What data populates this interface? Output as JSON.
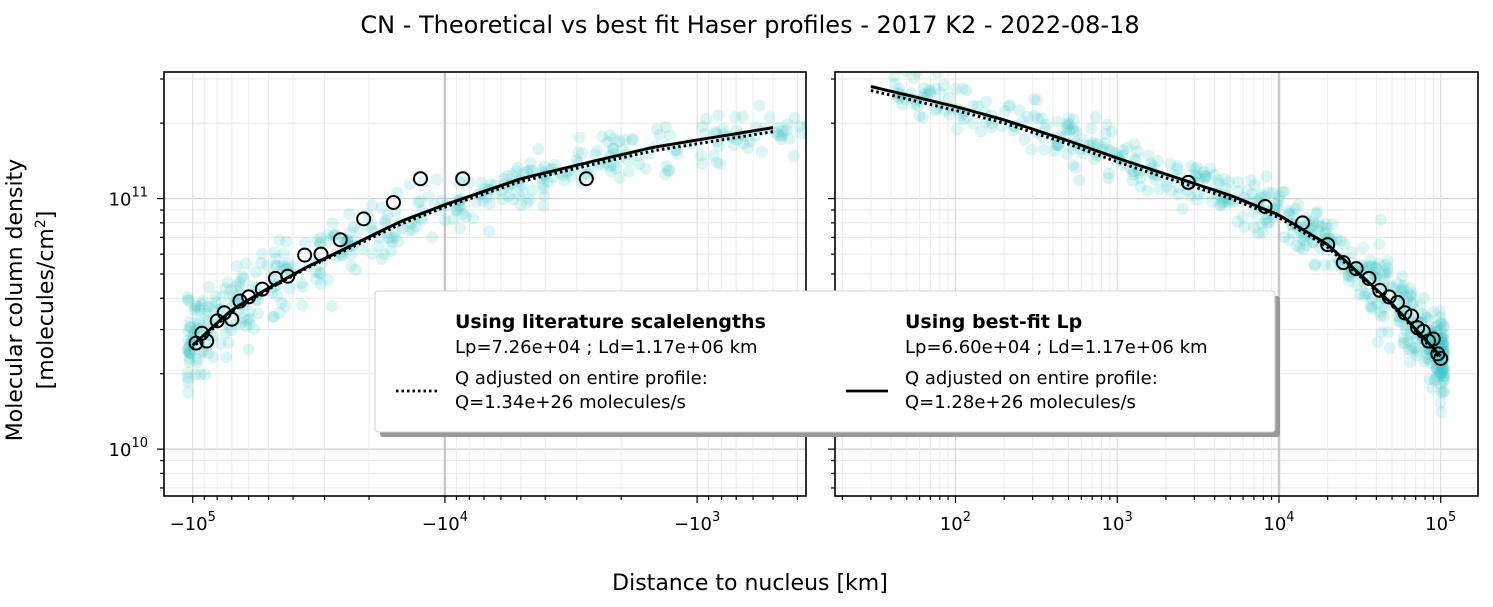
{
  "chart_data": {
    "type": "scatter",
    "title": "CN - Theoretical vs best fit Haser profiles - 2017 K2 - 2022-08-18",
    "xlabel": "Distance to nucleus [km]",
    "ylabel_line1": "Molecular column density",
    "ylabel_line2_prefix": "[molecules/cm",
    "ylabel_line2_sup": "2",
    "ylabel_line2_suffix": "]",
    "y_scale": "log",
    "ylim": [
      6500000000.0,
      320000000000.0
    ],
    "y_ticks": [
      {
        "value": 100000000000.0,
        "base": "10",
        "exp": "11"
      },
      {
        "value": 10000000000.0,
        "base": "10",
        "exp": "10"
      }
    ],
    "grid": true,
    "panels": [
      {
        "side": "negative",
        "x_scale": "log",
        "xlim": [
          -130000,
          -370
        ],
        "x_ticks": [
          {
            "value": -100000,
            "base": "−10",
            "exp": "5"
          },
          {
            "value": -10000,
            "base": "−10",
            "exp": "4"
          },
          {
            "value": -1000,
            "base": "−10",
            "exp": "3"
          }
        ],
        "vertical_line_at": -10000,
        "binned_points": {
          "x": [
            -97000,
            -92000,
            -88000,
            -80000,
            -75000,
            -70000,
            -65000,
            -60000,
            -53000,
            -47000,
            -42000,
            -36000,
            -31000,
            -26000,
            -21000,
            -16000,
            -12500,
            -8500,
            -2750
          ],
          "y": [
            26500000000.0,
            29000000000.0,
            27000000000.0,
            32500000000.0,
            35000000000.0,
            33000000000.0,
            39000000000.0,
            40500000000.0,
            43500000000.0,
            48000000000.0,
            49000000000.0,
            59500000000.0,
            60000000000.0,
            68500000000.0,
            83000000000.0,
            96500000000.0,
            120000000000.0,
            120000000000.0,
            120000000000.0
          ]
        },
        "model_literature": {
          "x": [
            -100000,
            -70000,
            -50000,
            -35000,
            -25000,
            -15000,
            -10000,
            -5000,
            -2500,
            -1500,
            -500
          ],
          "y": [
            25500000000.0,
            35500000000.0,
            43500000000.0,
            53000000000.0,
            62000000000.0,
            79000000000.0,
            92500000000.0,
            117000000000.0,
            138000000000.0,
            155000000000.0,
            185000000000.0
          ]
        },
        "model_bestfit": {
          "x": [
            -100000,
            -70000,
            -50000,
            -35000,
            -25000,
            -15000,
            -10000,
            -5000,
            -2500,
            -1500,
            -500
          ],
          "y": [
            26000000000.0,
            36000000000.0,
            44000000000.0,
            53500000000.0,
            63000000000.0,
            81000000000.0,
            94500000000.0,
            120000000000.0,
            142000000000.0,
            160000000000.0,
            192000000000.0
          ]
        }
      },
      {
        "side": "positive",
        "x_scale": "log",
        "xlim": [
          18,
          170000
        ],
        "x_ticks": [
          {
            "value": 100,
            "base": "10",
            "exp": "2"
          },
          {
            "value": 1000,
            "base": "10",
            "exp": "3"
          },
          {
            "value": 10000,
            "base": "10",
            "exp": "4"
          },
          {
            "value": 100000,
            "base": "10",
            "exp": "5"
          }
        ],
        "vertical_line_at": 10000,
        "binned_points": {
          "x": [
            2750,
            8200,
            14000,
            20000,
            25000,
            30000,
            36000,
            42000,
            48000,
            54000,
            60000,
            66000,
            72000,
            78000,
            84000,
            90000,
            96000,
            100000
          ],
          "y": [
            116000000000.0,
            93000000000.0,
            80000000000.0,
            65500000000.0,
            55500000000.0,
            52500000000.0,
            48000000000.0,
            43000000000.0,
            40500000000.0,
            38500000000.0,
            35000000000.0,
            34000000000.0,
            30500000000.0,
            29500000000.0,
            27000000000.0,
            27500000000.0,
            24000000000.0,
            23000000000.0
          ]
        },
        "model_literature": {
          "x": [
            30,
            100,
            200,
            500,
            1000,
            2000,
            5000,
            10000,
            20000,
            50000,
            100000
          ],
          "y": [
            270000000000.0,
            225000000000.0,
            200000000000.0,
            165000000000.0,
            140000000000.0,
            121000000000.0,
            100000000000.0,
            84000000000.0,
            64000000000.0,
            37500000000.0,
            23000000000.0
          ]
        },
        "model_bestfit": {
          "x": [
            30,
            100,
            200,
            500,
            1000,
            2000,
            5000,
            10000,
            20000,
            50000,
            100000
          ],
          "y": [
            280000000000.0,
            233000000000.0,
            206000000000.0,
            170000000000.0,
            145000000000.0,
            125000000000.0,
            103000000000.0,
            86000000000.0,
            65500000000.0,
            38000000000.0,
            23500000000.0
          ]
        }
      }
    ],
    "legend": {
      "placement": "center",
      "col1_title": "Using literature scalelengths",
      "col1_params": "Lp=7.26e+04 ; Ld=1.17e+06 km",
      "col1_entry_line1": "Q adjusted on entire profile:",
      "col1_entry_line2": "Q=1.34e+26 molecules/s",
      "col2_title": "Using best-fit Lp",
      "col2_params": "Lp=6.60e+04 ; Ld=1.17e+06 km",
      "col2_entry_line1": "Q adjusted on entire profile:",
      "col2_entry_line2": "Q=1.28e+26 molecules/s"
    },
    "colors": {
      "scatter": "#3cc8c8",
      "binned": "#000000",
      "model": "#000000",
      "vertical_line": "#c8c8c8"
    }
  }
}
